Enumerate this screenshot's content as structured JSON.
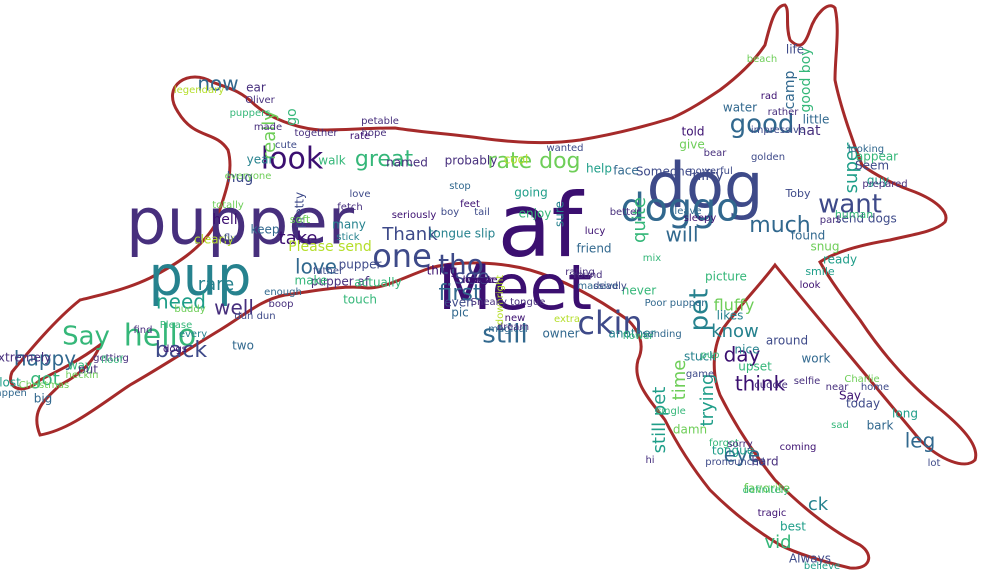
{
  "image": {
    "type": "word-cloud",
    "shape": "leaping-dog-silhouette",
    "outline_color": "#a52a2a",
    "background": "#ffffff",
    "palette": [
      "#3b0f70",
      "#472f7d",
      "#3e4a89",
      "#31688e",
      "#26828e",
      "#1f9e89",
      "#35b779",
      "#6ece58",
      "#b5de2b",
      "#fde725"
    ]
  },
  "words": [
    {
      "text": "pupper"
    },
    {
      "text": "af"
    },
    {
      "text": "dog"
    },
    {
      "text": "Meet"
    },
    {
      "text": "pup"
    },
    {
      "text": "doggo"
    },
    {
      "text": "hello"
    },
    {
      "text": "Say"
    },
    {
      "text": "one"
    },
    {
      "text": "look"
    },
    {
      "text": "good"
    },
    {
      "text": "want"
    },
    {
      "text": "tho"
    },
    {
      "text": "ckin"
    },
    {
      "text": "still"
    },
    {
      "text": "rate dog"
    },
    {
      "text": "great"
    },
    {
      "text": "now"
    },
    {
      "text": "pet"
    },
    {
      "text": "much"
    },
    {
      "text": "will"
    },
    {
      "text": "love"
    },
    {
      "text": "take"
    },
    {
      "text": "Thank"
    },
    {
      "text": "first"
    },
    {
      "text": "see"
    },
    {
      "text": "back"
    },
    {
      "text": "happy"
    },
    {
      "text": "need"
    },
    {
      "text": "well"
    },
    {
      "text": "rare"
    },
    {
      "text": "know"
    },
    {
      "text": "day"
    },
    {
      "text": "think"
    },
    {
      "text": "eye"
    },
    {
      "text": "leg"
    },
    {
      "text": "super"
    },
    {
      "text": "quite"
    },
    {
      "text": "time"
    },
    {
      "text": "still pet"
    },
    {
      "text": "trying"
    },
    {
      "text": "ck"
    },
    {
      "text": "vid"
    },
    {
      "text": "really"
    },
    {
      "text": "got"
    },
    {
      "text": "fluffy"
    },
    {
      "text": "hug"
    },
    {
      "text": "hell"
    },
    {
      "text": "Please send"
    },
    {
      "text": "pupper af"
    },
    {
      "text": "Always"
    },
    {
      "text": "hard"
    },
    {
      "text": "Say"
    },
    {
      "text": "today"
    },
    {
      "text": "send dogs"
    },
    {
      "text": "ready"
    },
    {
      "text": "snug"
    },
    {
      "text": "guy"
    },
    {
      "text": "Seem"
    },
    {
      "text": "appear"
    },
    {
      "text": "life"
    },
    {
      "text": "good boy"
    },
    {
      "text": "camp"
    },
    {
      "text": "little"
    },
    {
      "text": "Toby"
    },
    {
      "text": "hat"
    },
    {
      "text": "keep"
    },
    {
      "text": "clearly"
    },
    {
      "text": "many"
    },
    {
      "text": "make"
    },
    {
      "text": "pretty"
    },
    {
      "text": "tongue slip"
    },
    {
      "text": "pupper"
    },
    {
      "text": "actually"
    },
    {
      "text": "thing"
    },
    {
      "text": "owner"
    },
    {
      "text": "even"
    },
    {
      "text": "pic"
    },
    {
      "text": "enjoy"
    },
    {
      "text": "going"
    },
    {
      "text": "friend"
    },
    {
      "text": "never"
    },
    {
      "text": "nifty"
    },
    {
      "text": "told"
    },
    {
      "text": "give"
    },
    {
      "text": "water"
    },
    {
      "text": "Someone"
    },
    {
      "text": "probably"
    },
    {
      "text": "cool"
    },
    {
      "text": "named"
    },
    {
      "text": "help"
    },
    {
      "text": "face"
    },
    {
      "text": "around"
    },
    {
      "text": "work"
    },
    {
      "text": "upset"
    },
    {
      "text": "nice"
    },
    {
      "text": "stuck"
    },
    {
      "text": "picture"
    },
    {
      "text": "likes"
    },
    {
      "text": "another"
    },
    {
      "text": "damn"
    },
    {
      "text": "tongue"
    },
    {
      "text": "favorite"
    },
    {
      "text": "best"
    },
    {
      "text": "bark"
    },
    {
      "text": "long"
    },
    {
      "text": "found"
    },
    {
      "text": "human"
    },
    {
      "text": "smile"
    },
    {
      "text": "two"
    },
    {
      "text": "Please"
    },
    {
      "text": "dogs"
    },
    {
      "text": "way"
    },
    {
      "text": "put"
    },
    {
      "text": "extremely"
    },
    {
      "text": "lost"
    },
    {
      "text": "big"
    },
    {
      "text": "Christmas"
    },
    {
      "text": "heckin"
    },
    {
      "text": "getting"
    },
    {
      "text": "every"
    },
    {
      "text": "find"
    },
    {
      "text": "made"
    },
    {
      "text": "ear"
    },
    {
      "text": "Oliver"
    },
    {
      "text": "go"
    },
    {
      "text": "walk"
    },
    {
      "text": "together"
    },
    {
      "text": "hope"
    },
    {
      "text": "soft"
    },
    {
      "text": "dun dun"
    },
    {
      "text": "enough"
    },
    {
      "text": "boop"
    },
    {
      "text": "father"
    },
    {
      "text": "stick"
    },
    {
      "text": "feet"
    },
    {
      "text": "tail"
    },
    {
      "text": "downright"
    },
    {
      "text": "Sneaky tongue"
    },
    {
      "text": "magical"
    },
    {
      "text": "dream"
    },
    {
      "text": "extra"
    },
    {
      "text": "round"
    },
    {
      "text": "massive"
    },
    {
      "text": "deadly"
    },
    {
      "text": "Poor pupper"
    },
    {
      "text": "flower"
    },
    {
      "text": "sending"
    },
    {
      "text": "game"
    },
    {
      "text": "cuddle"
    },
    {
      "text": "selfie"
    },
    {
      "text": "near"
    },
    {
      "text": "home"
    },
    {
      "text": "Charlie"
    },
    {
      "text": "legendary"
    },
    {
      "text": "sure"
    },
    {
      "text": "better"
    },
    {
      "text": "leave"
    },
    {
      "text": "sleepy"
    },
    {
      "text": "bear"
    },
    {
      "text": "rad"
    },
    {
      "text": "beach"
    },
    {
      "text": "rather"
    },
    {
      "text": "looking"
    },
    {
      "text": "prepared"
    },
    {
      "text": "impressive"
    },
    {
      "text": "powerful"
    },
    {
      "text": "golden"
    },
    {
      "text": "lot"
    },
    {
      "text": "tragic"
    },
    {
      "text": "definitely"
    },
    {
      "text": "believe"
    },
    {
      "text": "forgot"
    },
    {
      "text": "pronounced"
    },
    {
      "text": "coming"
    },
    {
      "text": "puppers"
    },
    {
      "text": "fetch"
    },
    {
      "text": "seriously"
    },
    {
      "text": "everyone"
    },
    {
      "text": "fly"
    },
    {
      "text": "sad"
    },
    {
      "text": "buddy"
    },
    {
      "text": "floof"
    },
    {
      "text": "happen"
    },
    {
      "text": "totally"
    },
    {
      "text": "year"
    },
    {
      "text": "cute"
    },
    {
      "text": "hi"
    },
    {
      "text": "single"
    },
    {
      "text": "rating"
    },
    {
      "text": "touch"
    },
    {
      "text": "rate"
    },
    {
      "text": "new"
    },
    {
      "text": "lucy"
    },
    {
      "text": "boy"
    },
    {
      "text": "love"
    },
    {
      "text": "mix"
    },
    {
      "text": "petable"
    },
    {
      "text": "wanted"
    },
    {
      "text": "stop"
    },
    {
      "text": "look"
    },
    {
      "text": "part"
    },
    {
      "text": "sorry"
    },
    {
      "text": "pup"
    },
    {
      "text": "lemme"
    },
    {
      "text": "minute"
    },
    {
      "text": "neat"
    },
    {
      "text": "exotic"
    },
    {
      "text": "tiny"
    }
  ]
}
